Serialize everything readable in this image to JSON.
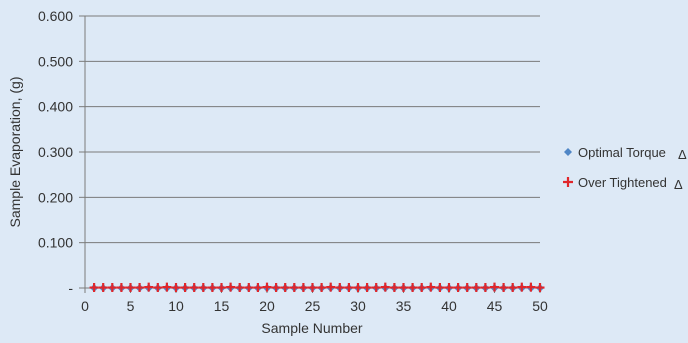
{
  "chart_data": {
    "type": "scatter",
    "xlabel": "Sample Number",
    "ylabel": "Sample Evaporation, (g)",
    "xlim": [
      0,
      50
    ],
    "ylim": [
      0,
      0.6
    ],
    "x_ticks": [
      "0",
      "5",
      "10",
      "15",
      "20",
      "25",
      "30",
      "35",
      "40",
      "45",
      "50"
    ],
    "y_ticks": [
      "-",
      "0.100",
      "0.200",
      "0.300",
      "0.400",
      "0.500",
      "0.600"
    ],
    "grid": "horizontal",
    "legend_position": "right",
    "series": [
      {
        "name": "Optimal Torque",
        "marker": "diamond",
        "color": "#4f86c6",
        "x": [
          1,
          2,
          3,
          4,
          5,
          6,
          7,
          8,
          9,
          10,
          11,
          12,
          13,
          14,
          15,
          16,
          17,
          18,
          19,
          20,
          21,
          22,
          23,
          24,
          25,
          26,
          27,
          28,
          29,
          30,
          31,
          32,
          33,
          34,
          35,
          36,
          37,
          38,
          39,
          40,
          41,
          42,
          43,
          44,
          45,
          46,
          47,
          48,
          49,
          50
        ],
        "values": [
          0,
          0,
          0,
          0,
          0,
          0,
          0,
          0,
          0,
          0,
          0,
          0,
          0,
          0,
          0,
          0,
          0,
          0,
          0,
          0,
          0,
          0,
          0,
          0,
          0,
          0,
          0,
          0,
          0,
          0,
          0,
          0,
          0,
          0,
          0,
          0,
          0,
          0,
          0,
          0,
          0,
          0,
          0,
          0,
          0,
          0,
          0,
          0,
          0,
          0
        ]
      },
      {
        "name": "Over Tightened",
        "marker": "plus",
        "color": "#e0262b",
        "x": [
          1,
          2,
          3,
          4,
          5,
          6,
          7,
          8,
          9,
          10,
          11,
          12,
          13,
          14,
          15,
          16,
          17,
          18,
          19,
          20,
          21,
          22,
          23,
          24,
          25,
          26,
          27,
          28,
          29,
          30,
          31,
          32,
          33,
          34,
          35,
          36,
          37,
          38,
          39,
          40,
          41,
          42,
          43,
          44,
          45,
          46,
          47,
          48,
          49,
          50
        ],
        "values": [
          0.001,
          0.001,
          0.001,
          0.001,
          0.001,
          0.001,
          0.002,
          0.001,
          0.002,
          0.001,
          0.001,
          0.001,
          0.001,
          0.001,
          0.001,
          0.002,
          0.001,
          0.001,
          0.001,
          0.002,
          0.001,
          0.001,
          0.001,
          0.001,
          0.001,
          0.001,
          0.002,
          0.001,
          0.001,
          0.001,
          0.001,
          0.001,
          0.002,
          0.001,
          0.001,
          0.001,
          0.001,
          0.002,
          0.001,
          0.001,
          0.001,
          0.001,
          0.001,
          0.001,
          0.002,
          0.001,
          0.001,
          0.002,
          0.002,
          0.001
        ]
      }
    ],
    "legend": [
      {
        "label": "Optimal  Torque",
        "suffix": "Δ"
      },
      {
        "label": "Over Tightened",
        "suffix": "Δ"
      }
    ]
  }
}
